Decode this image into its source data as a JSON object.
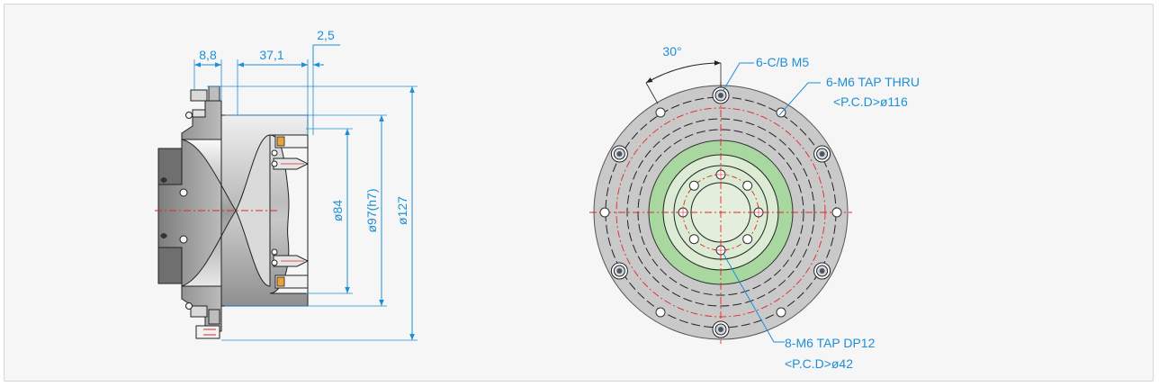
{
  "colors": {
    "dimension": "#1e8fd6",
    "centerline": "#e0262a",
    "body_gray": "#c9c9c9",
    "flange_green": "#a8d8a0",
    "seal_orange": "#e8a23a",
    "background": "#f6f6f6"
  },
  "side_view": {
    "dimensions": {
      "d_8_8": "8,8",
      "d_37_1": "37,1",
      "d_2_5": "2,5",
      "d_84": "ø84",
      "d_97": "ø97(h7)",
      "d_127": "ø127"
    }
  },
  "front_view": {
    "angle_label": "30°",
    "callouts": {
      "cb_m5": "6-C/B M5",
      "m6_thru_line1": "6-M6 TAP THRU",
      "m6_thru_line2": "<P.C.D>ø116",
      "m6_dp12_line1": "8-M6 TAP DP12",
      "m6_dp12_line2": "<P.C.D>ø42"
    }
  }
}
